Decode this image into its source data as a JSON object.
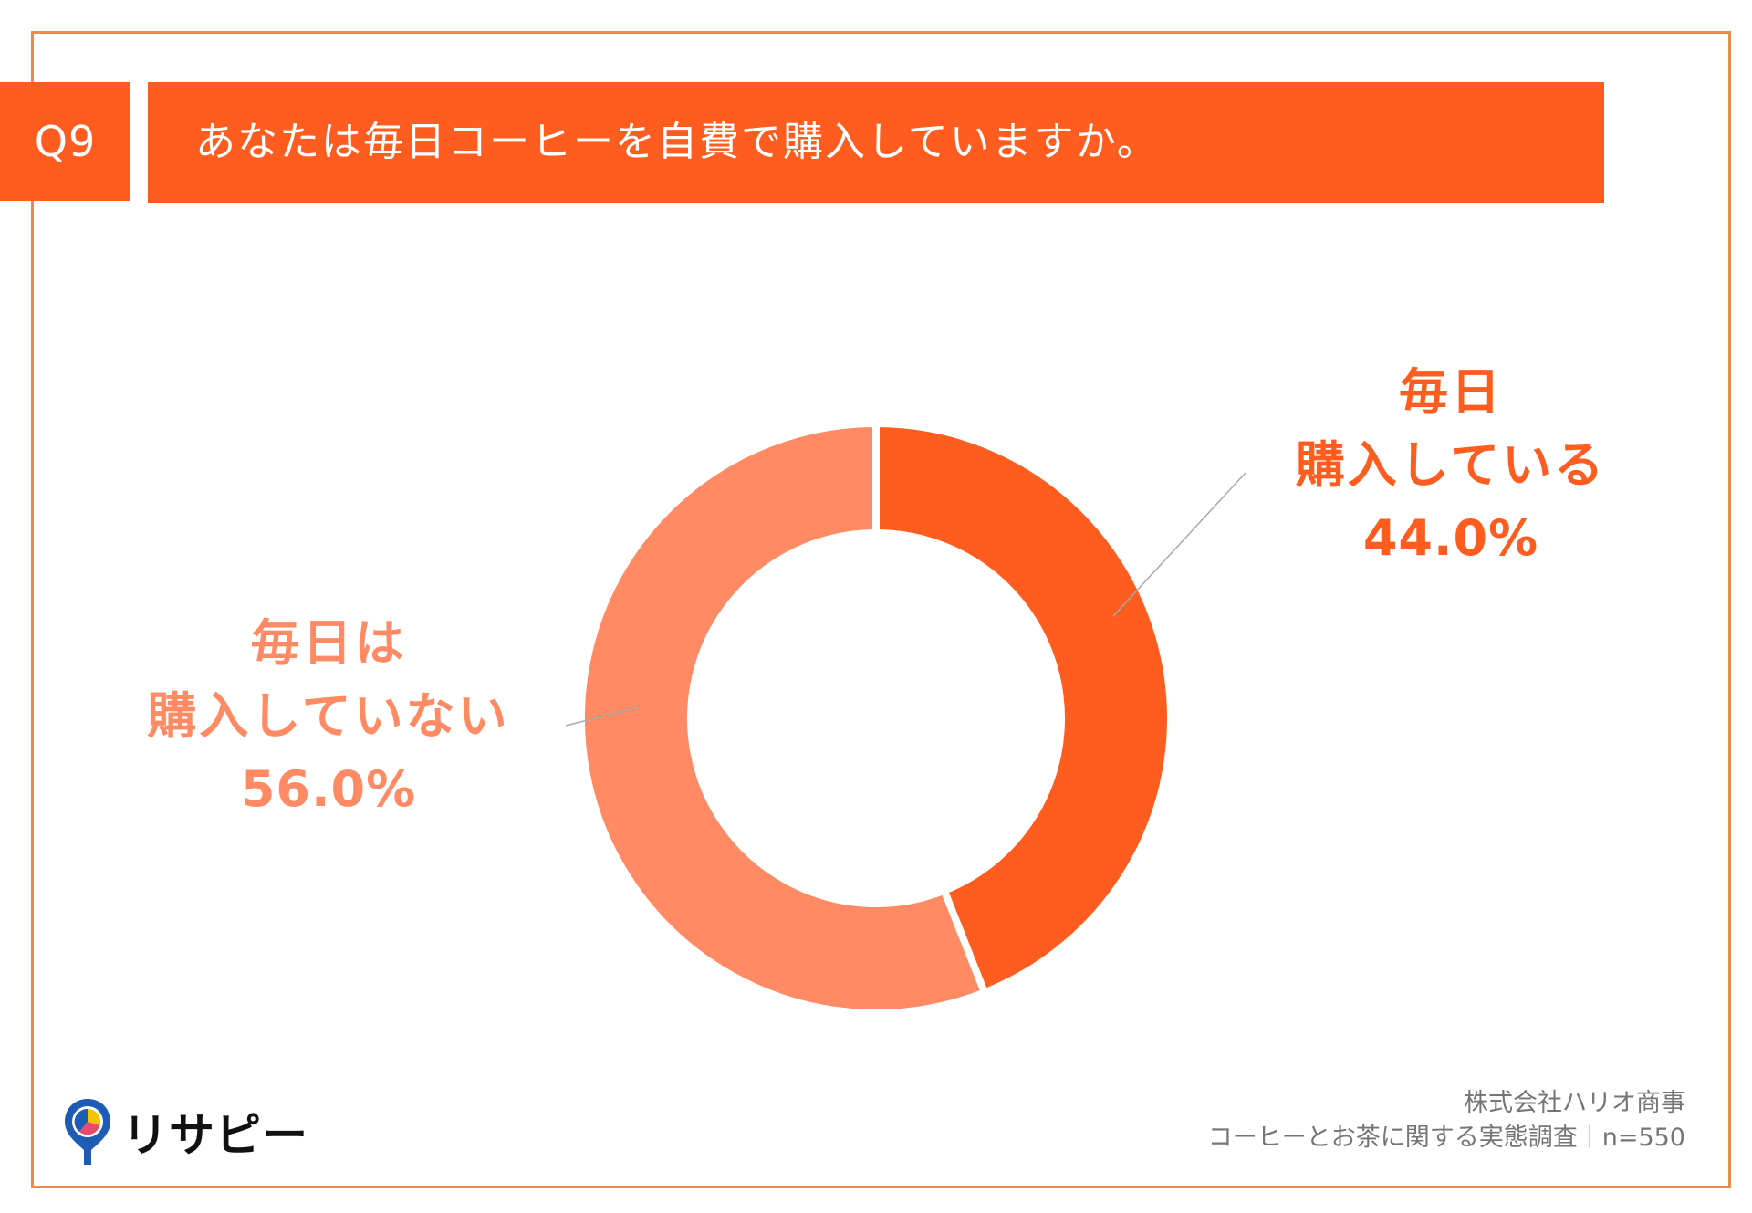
{
  "question": {
    "number": "Q9",
    "text": "あなたは毎日コーヒーを自費で購入していますか。"
  },
  "chart_data": {
    "type": "pie",
    "donut": true,
    "slices": [
      {
        "label_lines": [
          "毎日",
          "購入している"
        ],
        "percent_label": "44.0%",
        "value": 44.0,
        "color": "#ff5d1f"
      },
      {
        "label_lines": [
          "毎日は",
          "購入していない"
        ],
        "percent_label": "56.0%",
        "value": 56.0,
        "color": "#ff8a63"
      }
    ]
  },
  "footer": {
    "company": "株式会社ハリオ商事",
    "survey": "コーヒーとお茶に関する実態調査｜n=550"
  },
  "logo": {
    "text": "リサピー",
    "icon": "map-pin-pie-icon",
    "colors": [
      "#1e5bb5",
      "#f5c400",
      "#e84b6b"
    ]
  },
  "colors": {
    "accent": "#ff5d1f",
    "frame": "#e98a4e"
  }
}
